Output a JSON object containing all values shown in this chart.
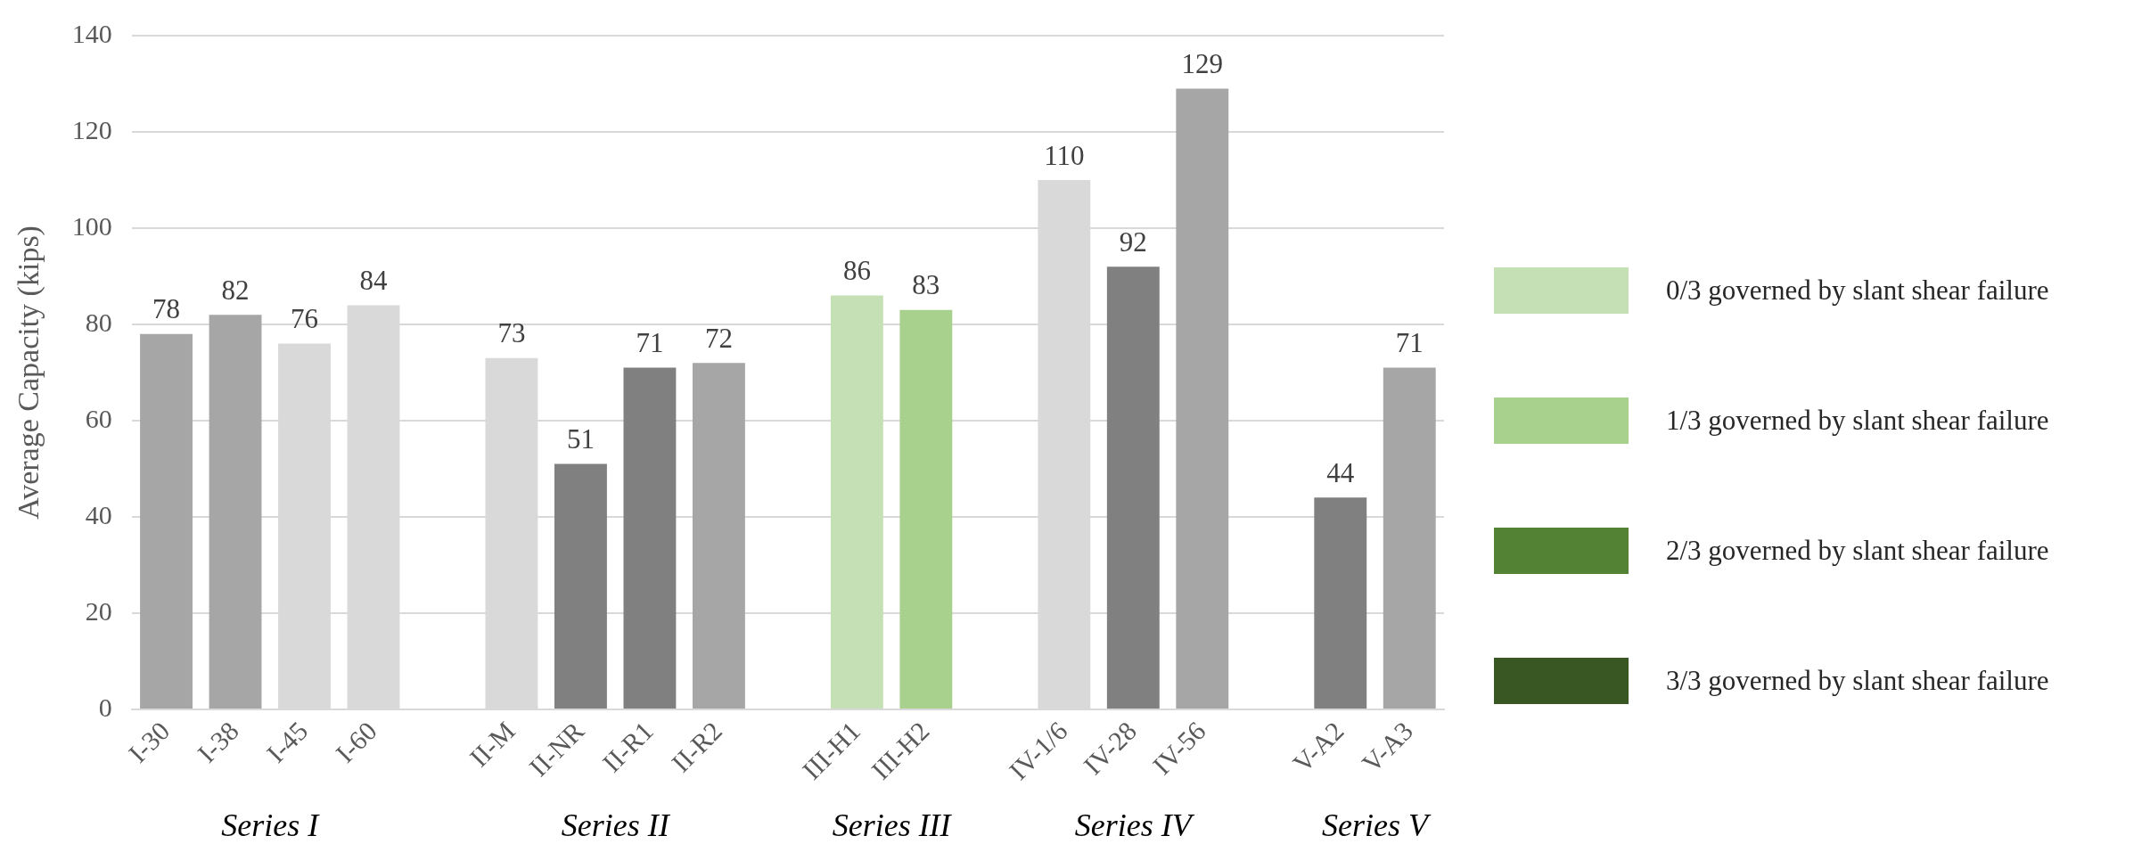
{
  "chart_data": {
    "type": "bar",
    "ylabel": "Average Capacity (kips)",
    "categories": [
      "I-30",
      "I-38",
      "I-45",
      "I-60",
      null,
      "II-M",
      "II-NR",
      "II-R1",
      "II-R2",
      null,
      "III-H1",
      "III-H2",
      null,
      "IV-1/6",
      "IV-28",
      "IV-56",
      null,
      "V-A2",
      "V-A3"
    ],
    "series": [
      {
        "color": "#a6a6a6",
        "colors": [
          "#a6a6a6",
          "#a6a6a6",
          "#d9d9d9",
          "#d9d9d9",
          null,
          "#d9d9d9",
          "#808080",
          "#808080",
          "#a6a6a6",
          null,
          null,
          null,
          null,
          "#d9d9d9",
          "#808080",
          "#a6a6a6",
          null,
          "#808080",
          "#a6a6a6"
        ],
        "values": [
          78,
          82,
          76,
          84,
          null,
          73,
          51,
          71,
          72,
          null,
          null,
          null,
          null,
          110,
          92,
          129,
          null,
          44,
          71
        ]
      },
      {
        "name": "0/3 governed by slant shear failure",
        "color": "#c5e0b4",
        "values": [
          null,
          null,
          null,
          null,
          null,
          null,
          null,
          null,
          null,
          null,
          86,
          null,
          null,
          null,
          null,
          null,
          null,
          null,
          null
        ]
      },
      {
        "name": "1/3 governed by slant shear failure",
        "color": "#a9d18e",
        "values": [
          null,
          null,
          null,
          null,
          null,
          null,
          null,
          null,
          null,
          null,
          null,
          83,
          null,
          null,
          null,
          null,
          null,
          null,
          null
        ]
      },
      {
        "name": "2/3 governed by slant shear failure",
        "color": "#548235",
        "values": [
          null,
          null,
          null,
          null,
          null,
          null,
          null,
          null,
          null,
          null,
          null,
          null,
          null,
          null,
          null,
          null,
          null,
          null,
          null
        ]
      },
      {
        "name": "3/3 governed by slant shear failure",
        "color": "#385723",
        "values": [
          null,
          null,
          null,
          null,
          null,
          null,
          null,
          null,
          null,
          null,
          null,
          null,
          null,
          null,
          null,
          null,
          null,
          null,
          null
        ]
      }
    ],
    "ylim": [
      0,
      140
    ],
    "yticks": [
      0,
      20,
      40,
      60,
      80,
      100,
      120,
      140
    ],
    "grid": "y",
    "legend": "right",
    "data_labels": true,
    "annotations": [
      "Series I",
      "Series II",
      "Series III",
      "Series IV",
      "Series V"
    ]
  }
}
